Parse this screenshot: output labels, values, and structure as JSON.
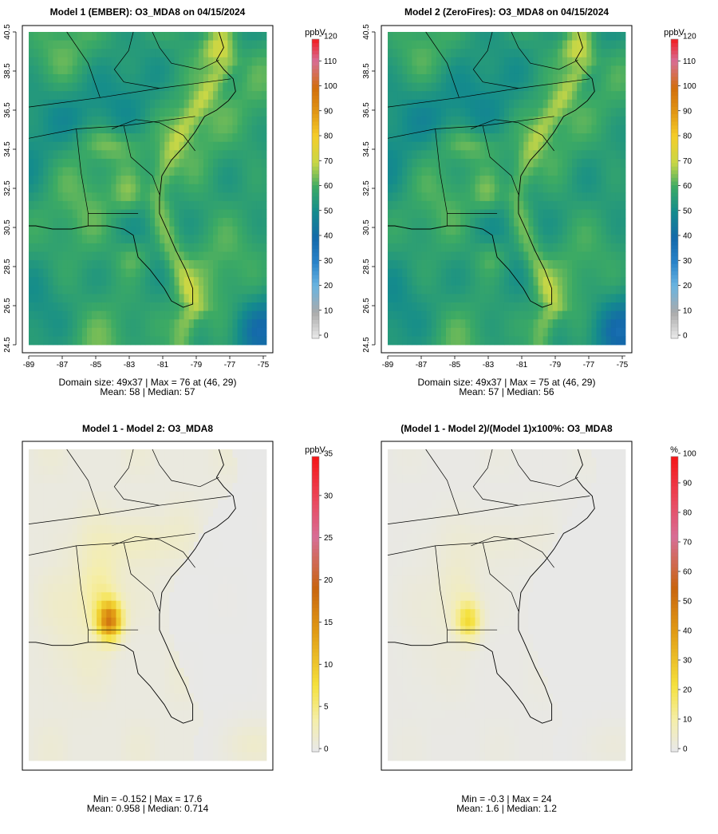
{
  "chart_data": [
    {
      "type": "heatmap",
      "title": "Model 1 (EMBER): O3_MDA8 on 04/15/2024",
      "xlabel": "",
      "ylabel": "",
      "x_ticks": [
        "-89",
        "-87",
        "-85",
        "-83",
        "-81",
        "-79",
        "-77",
        "-75"
      ],
      "y_ticks": [
        "24.5",
        "26.5",
        "28.5",
        "30.5",
        "32.5",
        "34.5",
        "36.5",
        "38.5",
        "40.5"
      ],
      "xlim": [
        -89,
        -75
      ],
      "ylim": [
        24.5,
        40.5
      ],
      "colorbar": {
        "unit": "ppbV",
        "ticks": [
          "0",
          "10",
          "20",
          "30",
          "40",
          "50",
          "60",
          "70",
          "80",
          "90",
          "100",
          "110",
          "120"
        ],
        "range": [
          0,
          120
        ]
      },
      "grid_size": "49x37",
      "stats_line1": "Domain size: 49x37 | Max = 76 at (46, 29)",
      "stats_line2": "Mean: 58 |  Median: 57",
      "values_summary": {
        "min": 44,
        "max": 76,
        "mean": 58,
        "median": 57
      }
    },
    {
      "type": "heatmap",
      "title": "Model 2 (ZeroFires): O3_MDA8 on 04/15/2024",
      "xlabel": "",
      "ylabel": "",
      "x_ticks": [
        "-89",
        "-87",
        "-85",
        "-83",
        "-81",
        "-79",
        "-77",
        "-75"
      ],
      "y_ticks": [
        "24.5",
        "26.5",
        "28.5",
        "30.5",
        "32.5",
        "34.5",
        "36.5",
        "38.5",
        "40.5"
      ],
      "xlim": [
        -89,
        -75
      ],
      "ylim": [
        24.5,
        40.5
      ],
      "colorbar": {
        "unit": "ppbV",
        "ticks": [
          "0",
          "10",
          "20",
          "30",
          "40",
          "50",
          "60",
          "70",
          "80",
          "90",
          "100",
          "110",
          "120"
        ],
        "range": [
          0,
          120
        ]
      },
      "grid_size": "49x37",
      "stats_line1": "Domain size: 49x37 | Max = 75 at (46, 29)",
      "stats_line2": "Mean: 57 |  Median: 56",
      "values_summary": {
        "min": 44,
        "max": 75,
        "mean": 57,
        "median": 56
      }
    },
    {
      "type": "heatmap",
      "title": "Model 1 - Model 2: O3_MDA8",
      "xlabel": "",
      "ylabel": "",
      "colorbar": {
        "unit": "ppbV",
        "ticks": [
          "0",
          "5",
          "10",
          "15",
          "20",
          "25",
          "30",
          "35"
        ],
        "range": [
          0,
          35
        ]
      },
      "stats_line1": "Min = -0.152 | Max = 17.6",
      "stats_line2": "Mean: 0.958 |  Median: 0.714",
      "values_summary": {
        "min": -0.152,
        "max": 17.6,
        "mean": 0.958,
        "median": 0.714
      }
    },
    {
      "type": "heatmap",
      "title": "(Model 1 - Model 2)/(Model 1)x100%: O3_MDA8",
      "xlabel": "",
      "ylabel": "",
      "colorbar": {
        "unit": "%",
        "ticks": [
          "0",
          "10",
          "20",
          "30",
          "40",
          "50",
          "60",
          "70",
          "80",
          "90",
          "100"
        ],
        "range": [
          0,
          100
        ]
      },
      "stats_line1": "Min = -0.3 | Max = 24",
      "stats_line2": "Mean: 1.6 |  Median: 1.2",
      "values_summary": {
        "min": -0.3,
        "max": 24,
        "mean": 1.6,
        "median": 1.2
      }
    }
  ]
}
